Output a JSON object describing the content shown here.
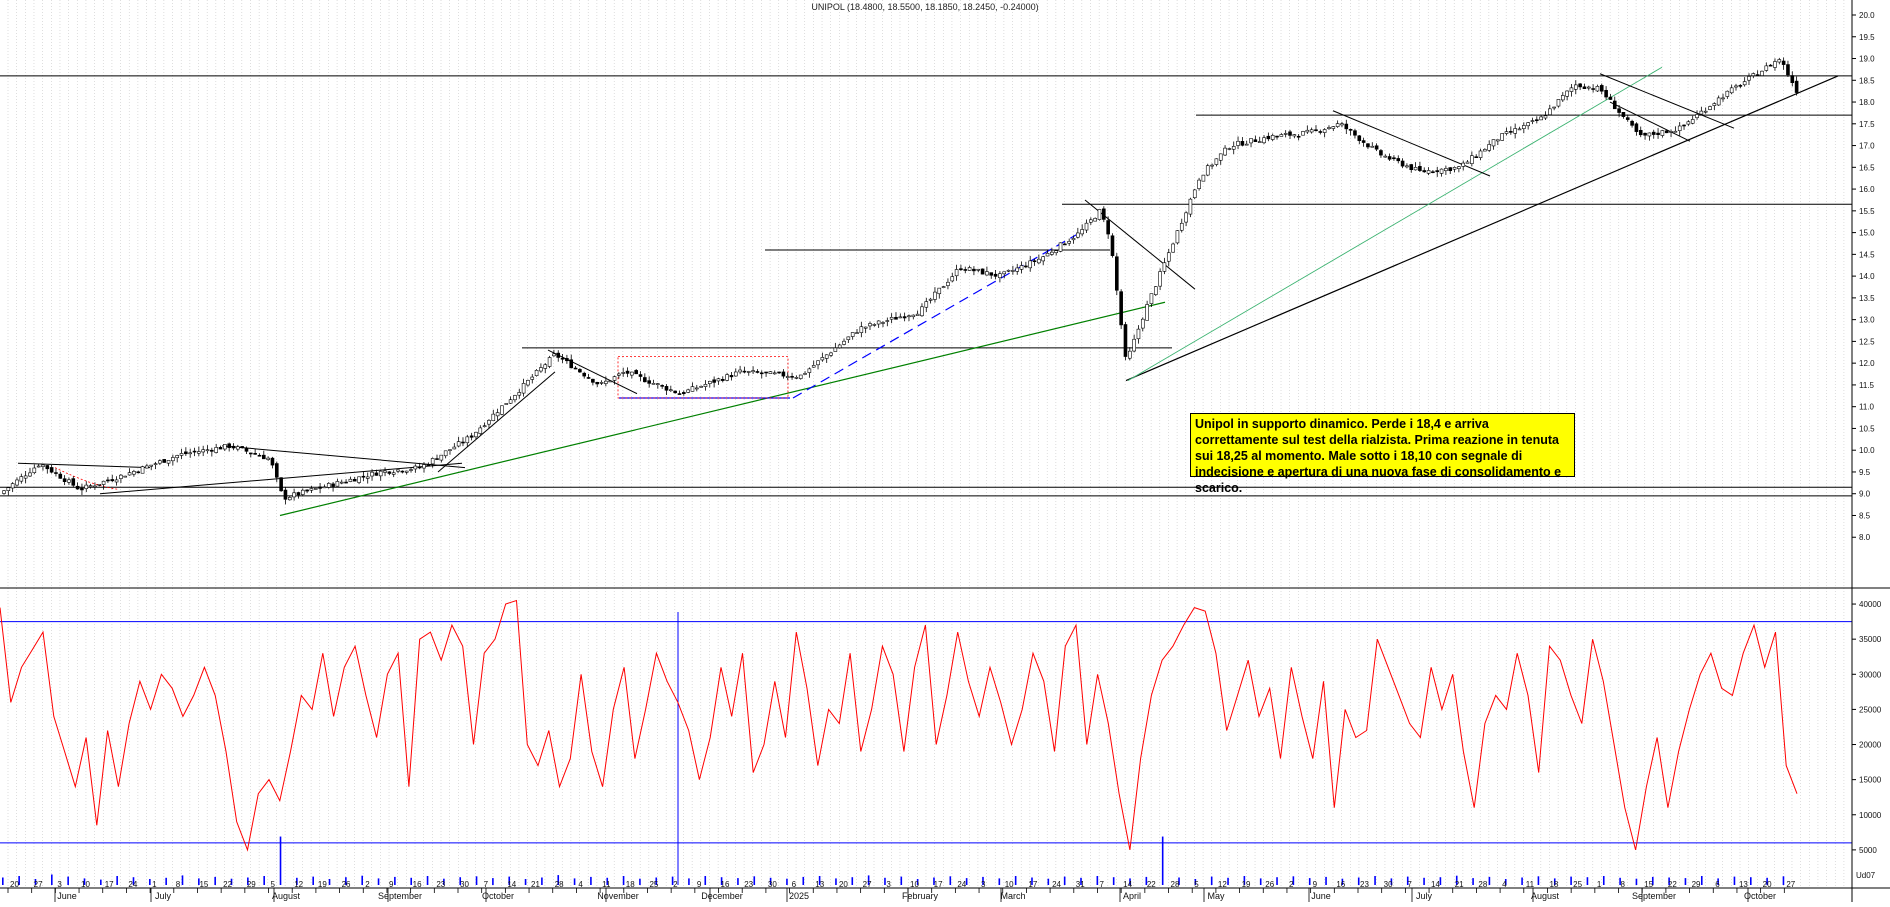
{
  "title": "UNIPOL (18.4800, 18.5500, 18.1850, 18.2450, -0.24000)",
  "annotation": "Unipol in supporto dinamico. Perde i 18,4 e arriva correttamente sul test della rialzista. Prima reazione in tenuta sui 18,25 al momento. Male sotto i 18,10 con segnale di indecisione e apertura di una nuova fase di consolidamento e scarico.",
  "colors": {
    "background": "#ffffff",
    "candle_up": "#ffffff",
    "candle_down": "#000000",
    "oscillator": "#ff0000",
    "volume": "#0000ff",
    "levels": "#0000ff",
    "trend_green": "#008000",
    "trend_blue_dashed": "#0000ff",
    "trend_teal": "#3cb371",
    "dotted_red": "#ff0000",
    "note_bg": "#ffff00"
  },
  "chart_data": [
    {
      "type": "candlestick",
      "title": "UNIPOL (18.4800, 18.5500, 18.1850, 18.2450, -0.24000)",
      "ylim": [
        7.5,
        20.0
      ],
      "y_ticks": [
        "8.0",
        "8.5",
        "9.0",
        "9.5",
        "10.0",
        "10.5",
        "11.0",
        "11.5",
        "12.0",
        "12.5",
        "13.0",
        "13.5",
        "14.0",
        "14.5",
        "15.0",
        "15.5",
        "16.0",
        "16.5",
        "17.0",
        "17.5",
        "18.0",
        "18.5",
        "19.0",
        "19.5",
        "20.0"
      ],
      "last_bar": {
        "open": 18.48,
        "high": 18.55,
        "low": 18.185,
        "close": 18.245,
        "change": -0.24
      },
      "horizontal_levels": [
        8.95,
        9.15,
        12.35,
        14.6,
        15.65,
        17.7,
        18.6
      ],
      "price_path": [
        {
          "x": 0,
          "y": 9.0
        },
        {
          "x": 40,
          "y": 9.7
        },
        {
          "x": 80,
          "y": 9.1
        },
        {
          "x": 120,
          "y": 9.4
        },
        {
          "x": 180,
          "y": 9.9
        },
        {
          "x": 230,
          "y": 10.1
        },
        {
          "x": 270,
          "y": 9.8
        },
        {
          "x": 283,
          "y": 8.9
        },
        {
          "x": 330,
          "y": 9.2
        },
        {
          "x": 380,
          "y": 9.5
        },
        {
          "x": 420,
          "y": 9.6
        },
        {
          "x": 470,
          "y": 10.3
        },
        {
          "x": 520,
          "y": 11.4
        },
        {
          "x": 555,
          "y": 12.2
        },
        {
          "x": 600,
          "y": 11.5
        },
        {
          "x": 625,
          "y": 11.8
        },
        {
          "x": 680,
          "y": 11.3
        },
        {
          "x": 740,
          "y": 11.8
        },
        {
          "x": 800,
          "y": 11.7
        },
        {
          "x": 860,
          "y": 12.8
        },
        {
          "x": 920,
          "y": 13.2
        },
        {
          "x": 960,
          "y": 14.2
        },
        {
          "x": 1000,
          "y": 14.0
        },
        {
          "x": 1040,
          "y": 14.4
        },
        {
          "x": 1080,
          "y": 15.0
        },
        {
          "x": 1100,
          "y": 15.5
        },
        {
          "x": 1110,
          "y": 14.9
        },
        {
          "x": 1126,
          "y": 12.0
        },
        {
          "x": 1145,
          "y": 13.2
        },
        {
          "x": 1170,
          "y": 14.6
        },
        {
          "x": 1200,
          "y": 16.3
        },
        {
          "x": 1230,
          "y": 17.0
        },
        {
          "x": 1270,
          "y": 17.2
        },
        {
          "x": 1310,
          "y": 17.3
        },
        {
          "x": 1340,
          "y": 17.5
        },
        {
          "x": 1380,
          "y": 16.8
        },
        {
          "x": 1420,
          "y": 16.4
        },
        {
          "x": 1460,
          "y": 16.5
        },
        {
          "x": 1500,
          "y": 17.2
        },
        {
          "x": 1540,
          "y": 17.6
        },
        {
          "x": 1575,
          "y": 18.4
        },
        {
          "x": 1600,
          "y": 18.3
        },
        {
          "x": 1640,
          "y": 17.2
        },
        {
          "x": 1680,
          "y": 17.4
        },
        {
          "x": 1720,
          "y": 18.1
        },
        {
          "x": 1760,
          "y": 18.7
        },
        {
          "x": 1780,
          "y": 19.0
        },
        {
          "x": 1797,
          "y": 18.25
        }
      ]
    },
    {
      "type": "line",
      "ylim": [
        0,
        42000
      ],
      "y_ticks": [
        "5000",
        "10000",
        "15000",
        "20000",
        "25000",
        "30000",
        "35000",
        "40000"
      ],
      "reference_levels": [
        6000,
        37500
      ],
      "series": [
        {
          "values": [
            39500,
            26000,
            31000,
            33500,
            36000,
            24000,
            19000,
            14000,
            21000,
            8500,
            22000,
            14000,
            23000,
            29000,
            25000,
            30000,
            28000,
            24000,
            27000,
            31000,
            27000,
            19000,
            9000,
            5000,
            13000,
            15000,
            12000,
            19000,
            27000,
            25000,
            33000,
            24000,
            31000,
            34000,
            27000,
            21000,
            30000,
            33000,
            14000,
            35000,
            36000,
            32000,
            37000,
            34000,
            20000,
            33000,
            35000,
            40000,
            40500,
            20000,
            17000,
            22000,
            14000,
            18000,
            30000,
            19000,
            14000,
            25000,
            31000,
            18000,
            25000,
            33000,
            29000,
            26000,
            22000,
            15000,
            21000,
            31000,
            24000,
            33000,
            16000,
            20000,
            29000,
            21000,
            36000,
            28000,
            17000,
            25000,
            23000,
            33000,
            19000,
            25000,
            34000,
            30000,
            19000,
            31000,
            37000,
            20000,
            27000,
            36000,
            29000,
            24000,
            31000,
            26000,
            20000,
            25000,
            33000,
            29000,
            19000,
            34000,
            37000,
            20000,
            30000,
            23000,
            13000,
            5000,
            18000,
            27000,
            32000,
            34000,
            37000,
            39500,
            39000,
            33000,
            22000,
            27000,
            32000,
            24000,
            28000,
            18000,
            31000,
            24000,
            18000,
            29000,
            11000,
            25000,
            21000,
            22000,
            35000,
            31000,
            27000,
            23000,
            21000,
            31000,
            25000,
            30000,
            19000,
            11000,
            23000,
            27000,
            25000,
            33000,
            27000,
            16000,
            34000,
            32000,
            27000,
            23000,
            35000,
            29000,
            20000,
            11000,
            5000,
            14000,
            21000,
            11000,
            19000,
            25000,
            30000,
            33000,
            28000,
            27000,
            33000,
            37000,
            31000,
            36000,
            17000,
            13000
          ]
        }
      ]
    },
    {
      "type": "bar",
      "ylim": [
        0,
        1
      ],
      "series": [
        {
          "values": [
            0.25,
            0.3,
            0.2,
            0.35,
            0.28,
            0.22,
            0.18,
            0.3,
            0.26,
            0.2,
            0.24,
            0.32,
            0.22,
            0.27,
            0.21,
            0.25,
            0.3,
            0.95,
            0.24,
            0.28,
            0.2,
            0.26,
            0.31,
            0.22,
            0.27,
            0.24,
            0.3,
            0.21,
            0.26,
            0.29,
            0.23,
            0.28,
            0.2,
            0.25,
            0.33,
            0.22,
            0.27,
            0.24,
            0.3,
            0.21,
            0.25,
            0.28,
            0.22,
            0.3,
            0.26,
            0.23,
            0.29,
            0.24,
            0.21,
            0.27,
            0.3,
            0.22,
            0.26,
            0.32,
            0.24,
            0.28,
            0.2,
            0.25,
            0.29,
            0.23,
            0.27,
            0.22,
            0.3,
            0.25,
            0.21,
            0.28,
            0.24,
            0.3,
            0.26,
            0.22,
            0.27,
            0.95,
            0.25,
            0.2,
            0.28,
            0.24,
            0.3,
            0.22,
            0.26,
            0.29,
            0.23,
            0.27,
            0.21,
            0.25,
            0.3,
            0.22,
            0.28,
            0.24,
            0.26,
            0.31,
            0.23,
            0.27,
            0.2,
            0.25,
            0.29,
            0.22,
            0.28,
            0.26,
            0.3,
            0.24,
            0.21,
            0.27,
            0.25,
            0.23,
            0.3,
            0.22,
            0.28,
            0.26,
            0.24,
            0.29
          ]
        }
      ]
    }
  ],
  "month_labels": [
    {
      "label": "June",
      "x": 67
    },
    {
      "label": "July",
      "x": 163
    },
    {
      "label": "August",
      "x": 286
    },
    {
      "label": "September",
      "x": 400
    },
    {
      "label": "October",
      "x": 498
    },
    {
      "label": "November",
      "x": 618
    },
    {
      "label": "December",
      "x": 722
    },
    {
      "label": "2025",
      "x": 799
    },
    {
      "label": "February",
      "x": 920
    },
    {
      "label": "March",
      "x": 1013
    },
    {
      "label": "April",
      "x": 1132
    },
    {
      "label": "May",
      "x": 1216
    },
    {
      "label": "June",
      "x": 1321
    },
    {
      "label": "July",
      "x": 1424
    },
    {
      "label": "August",
      "x": 1545
    },
    {
      "label": "September",
      "x": 1654
    },
    {
      "label": "October",
      "x": 1760
    }
  ],
  "day_labels": [
    "20",
    "27",
    "3",
    "10",
    "17",
    "24",
    "1",
    "8",
    "15",
    "22",
    "29",
    "5",
    "12",
    "19",
    "26",
    "2",
    "9",
    "16",
    "23",
    "30",
    "7",
    "14",
    "21",
    "28",
    "4",
    "11",
    "18",
    "25",
    "2",
    "9",
    "16",
    "23",
    "30",
    "6",
    "13",
    "20",
    "27",
    "3",
    "10",
    "17",
    "24",
    "3",
    "10",
    "17",
    "24",
    "31",
    "7",
    "14",
    "22",
    "28",
    "5",
    "12",
    "19",
    "26",
    "2",
    "9",
    "16",
    "23",
    "30",
    "7",
    "14",
    "21",
    "28",
    "4",
    "11",
    "18",
    "25",
    "1",
    "8",
    "15",
    "22",
    "29",
    "6",
    "13",
    "20",
    "27"
  ],
  "right_corner_label": "Ud07"
}
